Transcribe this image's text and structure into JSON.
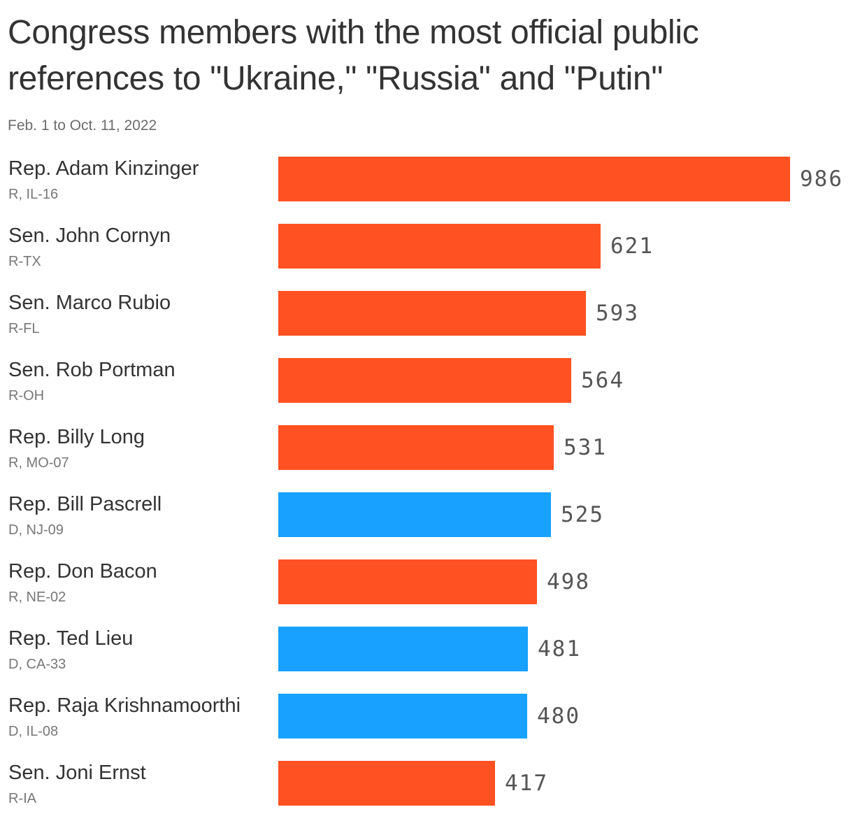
{
  "title": "Congress members with the most official public references to \"Ukraine,\" \"Russia\" and \"Putin\"",
  "subtitle": "Feb. 1 to Oct. 11, 2022",
  "colors": {
    "republican": "#ff5122",
    "democrat": "#18a1fe"
  },
  "chart_data": {
    "type": "bar",
    "orientation": "horizontal",
    "title": "Congress members with the most official public references to \"Ukraine,\" \"Russia\" and \"Putin\"",
    "subtitle": "Feb. 1 to Oct. 11, 2022",
    "categories": [
      "Rep. Adam Kinzinger",
      "Sen. John Cornyn",
      "Sen. Marco Rubio",
      "Sen. Rob Portman",
      "Rep. Billy Long",
      "Rep. Bill Pascrell",
      "Rep. Don Bacon",
      "Rep. Ted Lieu",
      "Rep. Raja Krishnamoorthi",
      "Sen. Joni Ernst"
    ],
    "sublabels": [
      "R, IL-16",
      "R-TX",
      "R-FL",
      "R-OH",
      "R, MO-07",
      "D, NJ-09",
      "R, NE-02",
      "D, CA-33",
      "D, IL-08",
      "R-IA"
    ],
    "party": [
      "R",
      "R",
      "R",
      "R",
      "R",
      "D",
      "R",
      "D",
      "D",
      "R"
    ],
    "values": [
      986,
      621,
      593,
      564,
      531,
      525,
      498,
      481,
      480,
      417
    ],
    "xlim": [
      0,
      986
    ],
    "grid": false,
    "legend": "none"
  }
}
